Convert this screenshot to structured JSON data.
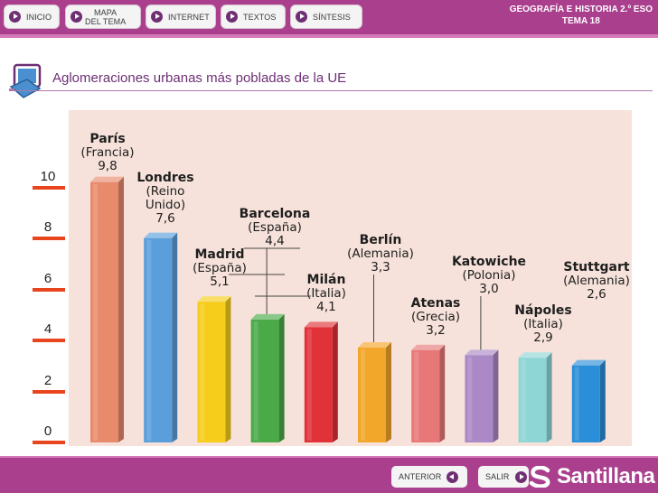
{
  "nav": {
    "inicio": "INICIO",
    "mapa_line1": "MAPA",
    "mapa_line2": "DEL TEMA",
    "internet": "INTERNET",
    "textos": "TEXTOS",
    "sintesis": "SÍNTESIS"
  },
  "course": {
    "line1": "GEOGRAFÍA E HISTORIA 2.º ESO",
    "line2": "TEMA 18"
  },
  "page": {
    "title": "Aglomeraciones urbanas más pobladas de la UE"
  },
  "footer": {
    "anterior": "ANTERIOR",
    "salir": "SALIR",
    "brand": "Santillana"
  },
  "colors": {
    "brand": "#aa3f8e",
    "title": "#6d2f74",
    "axis_marks": "#e8451e",
    "chart_bg": "#f6e2da"
  },
  "chart_data": {
    "type": "bar",
    "title": "Aglomeraciones urbanas más pobladas de la UE",
    "xlabel": "",
    "ylabel": "",
    "ylim": [
      0,
      10
    ],
    "yticks": [
      "0",
      "2",
      "4",
      "6",
      "8",
      "10"
    ],
    "bars": [
      {
        "city": "París",
        "country": [
          "(Francia)"
        ],
        "value": 9.8,
        "value_label": "9,8",
        "color": "#e88a6c"
      },
      {
        "city": "Londres",
        "country": [
          "(Reino",
          "Unido)"
        ],
        "value": 7.6,
        "value_label": "7,6",
        "color": "#5a9fdc"
      },
      {
        "city": "Madrid",
        "country": [
          "(España)"
        ],
        "value": 5.1,
        "value_label": "5,1",
        "color": "#f6cd1a"
      },
      {
        "city": "Barcelona",
        "country": [
          "(España)"
        ],
        "value": 4.4,
        "value_label": "4,4",
        "color": "#4aaa48"
      },
      {
        "city": "Milán",
        "country": [
          "(Italia)"
        ],
        "value": 4.1,
        "value_label": "4,1",
        "color": "#e03238"
      },
      {
        "city": "Berlín",
        "country": [
          "(Alemania)"
        ],
        "value": 3.3,
        "value_label": "3,3",
        "color": "#f2a62a"
      },
      {
        "city": "Atenas",
        "country": [
          "(Grecia)"
        ],
        "value": 3.2,
        "value_label": "3,2",
        "color": "#e87878"
      },
      {
        "city": "Katowiche",
        "country": [
          "(Polonia)"
        ],
        "value": 3.0,
        "value_label": "3,0",
        "color": "#ab88c6"
      },
      {
        "city": "Nápoles",
        "country": [
          "(Italia)"
        ],
        "value": 2.9,
        "value_label": "2,9",
        "color": "#8ed6d6"
      },
      {
        "city": "Stuttgart",
        "country": [
          "(Alemania)"
        ],
        "value": 2.6,
        "value_label": "2,6",
        "color": "#2a8fd8"
      }
    ]
  }
}
